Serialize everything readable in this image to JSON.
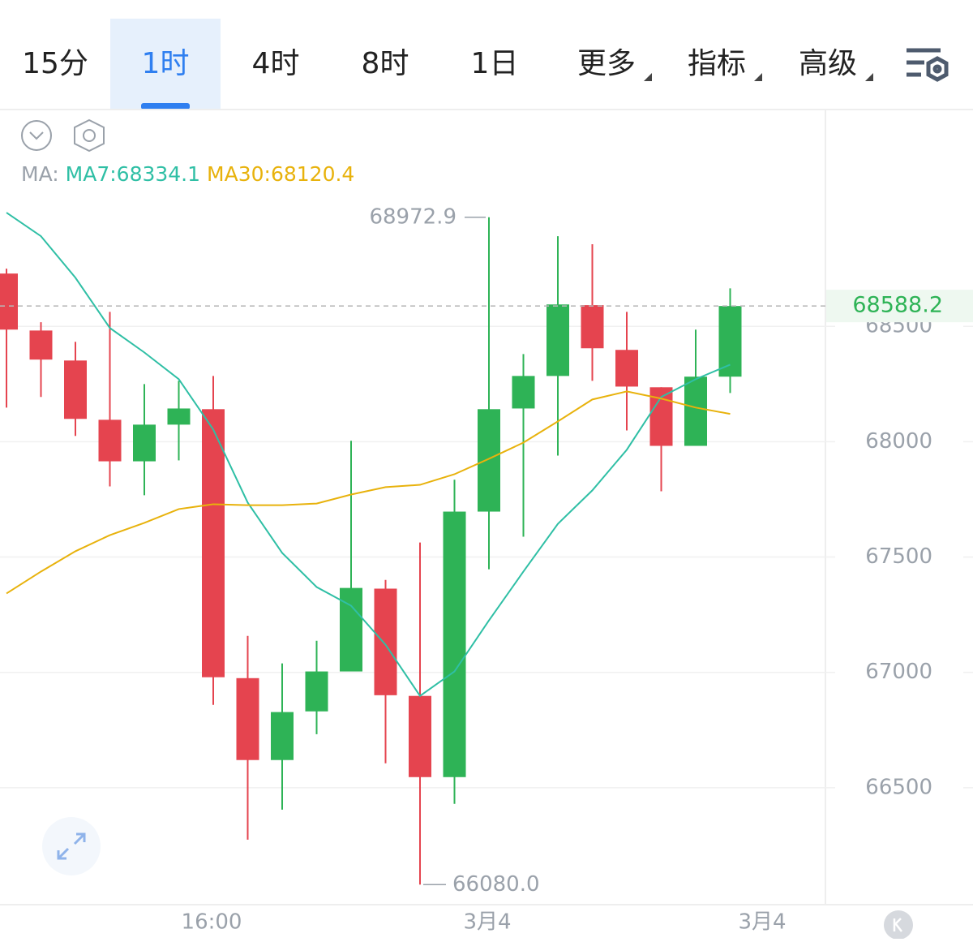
{
  "tabs": [
    "15分",
    "1时",
    "4时",
    "8时",
    "1日"
  ],
  "menus": [
    "更多",
    "指标",
    "高级"
  ],
  "ma_legend": {
    "label": "MA:",
    "items": [
      "MA7:68334.1",
      "MA30:68120.4"
    ],
    "colors": [
      "#2fbfa5",
      "#e8b20c"
    ]
  },
  "chart_data": {
    "type": "candlestick",
    "up_color": "#2eb356",
    "down_color": "#e5444f",
    "candles": {
      "open": [
        68729,
        68482,
        68352,
        68095,
        67915,
        68074,
        68141,
        66975,
        66620,
        66831,
        67004,
        67363,
        66898,
        66546,
        67697,
        68144,
        68285,
        68592,
        68398,
        68236,
        67982,
        68282
      ],
      "high": [
        68750,
        68518,
        68433,
        68563,
        68250,
        68264,
        68285,
        67158,
        67039,
        67137,
        68004,
        67401,
        67563,
        67835,
        68972.9,
        68380,
        68891,
        68856,
        68563,
        68236,
        68486,
        68665
      ],
      "low": [
        68148,
        68194,
        68025,
        67806,
        67768,
        67919,
        66859,
        66275,
        66405,
        66732,
        67004,
        66606,
        66080,
        66430,
        67447,
        67588,
        67940,
        68264,
        68049,
        67785,
        67982,
        68211
      ],
      "close": [
        68486,
        68356,
        68099,
        67915,
        68074,
        68144,
        66979,
        66620,
        66828,
        67004,
        67366,
        66901,
        66546,
        67697,
        68141,
        68285,
        68595,
        68405,
        68239,
        67982,
        68282,
        68588.2
      ]
    },
    "series": [
      {
        "name": "MA7",
        "color": "#2fbfa5",
        "values": [
          68993,
          68891,
          68711,
          68493,
          68387,
          68271,
          68053,
          67736,
          67518,
          67370,
          67289,
          67120,
          66898,
          67004,
          67225,
          67437,
          67644,
          67789,
          67965,
          68194,
          68271,
          68334.1
        ]
      },
      {
        "name": "MA30",
        "color": "#e8b20c",
        "values": [
          67342,
          67437,
          67525,
          67595,
          67648,
          67708,
          67729,
          67725,
          67725,
          67732,
          67771,
          67803,
          67813,
          67859,
          67926,
          67996,
          68088,
          68183,
          68218,
          68187,
          68148,
          68120.4
        ]
      }
    ],
    "ylim": [
      66000,
      69440
    ],
    "yticks": [
      66500,
      67000,
      67500,
      68000,
      68500
    ],
    "grid": true,
    "x_labels": [
      "16:00",
      "3月4",
      "3月4"
    ],
    "max_label": 68972.9,
    "min_label": {
      "value": 66080,
      "label": "66080.0"
    },
    "last_price": 68588.2
  }
}
